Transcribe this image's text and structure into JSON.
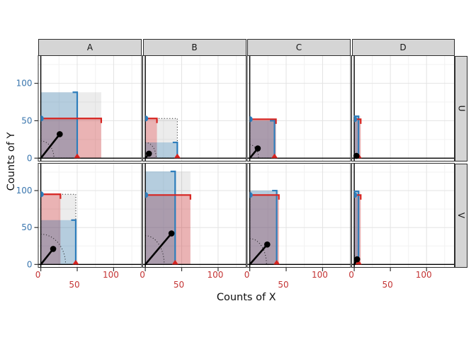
{
  "chart_data": {
    "type": "faceted_rect_scaling",
    "title": "",
    "xlabel": "Counts of X",
    "ylabel": "Counts of Y",
    "facet_cols": [
      "A",
      "B",
      "C",
      "D"
    ],
    "facet_rows": [
      "U",
      "V"
    ],
    "x_ticks": [
      0,
      50,
      100
    ],
    "y_ticks": [
      0,
      50,
      100
    ],
    "x_tick_rows": [
      [
        0,
        100
      ],
      [
        50
      ]
    ],
    "x_range": [
      -3.5,
      138.5
    ],
    "y_range": [
      -4,
      137
    ],
    "grid_minor": [
      25,
      75,
      125
    ],
    "grid_major": [
      0,
      50,
      100
    ],
    "legend_position": "none",
    "panels": [
      {
        "col": "A",
        "row": "U",
        "orig_w": 50,
        "orig_h": 53,
        "red_w": 83,
        "blue_h": 88,
        "point": [
          26,
          32
        ],
        "arc": [
          18,
          23
        ]
      },
      {
        "col": "B",
        "row": "U",
        "orig_w": 44,
        "orig_h": 53,
        "red_w": 16,
        "blue_h": 21,
        "point": [
          5,
          6
        ],
        "arc": [
          15,
          21
        ]
      },
      {
        "col": "C",
        "row": "U",
        "orig_w": 34,
        "orig_h": 52,
        "red_w": 36,
        "blue_h": 50,
        "point": [
          11,
          13
        ],
        "arc": [
          12,
          18
        ]
      },
      {
        "col": "D",
        "row": "U",
        "orig_w": 6,
        "orig_h": 52,
        "red_w": 9,
        "blue_h": 56,
        "point": [
          3,
          3
        ],
        "arc": [
          2,
          9
        ]
      },
      {
        "col": "A",
        "row": "V",
        "orig_w": 48,
        "orig_h": 95,
        "red_w": 27,
        "blue_h": 60,
        "point": [
          17,
          21
        ],
        "arc": [
          34,
          41
        ]
      },
      {
        "col": "B",
        "row": "V",
        "orig_w": 41,
        "orig_h": 94,
        "red_w": 62,
        "blue_h": 126,
        "point": [
          36,
          42
        ],
        "arc": [
          26,
          39
        ]
      },
      {
        "col": "C",
        "row": "V",
        "orig_w": 37,
        "orig_h": 94,
        "red_w": 40,
        "blue_h": 100,
        "point": [
          24,
          27
        ],
        "arc": [
          23,
          35
        ]
      },
      {
        "col": "D",
        "row": "V",
        "orig_w": 6,
        "orig_h": 94,
        "red_w": 9,
        "blue_h": 99,
        "point": [
          4,
          7
        ],
        "arc": [
          3,
          12
        ]
      }
    ],
    "colors": {
      "red_line": "#d62420",
      "blue_line": "#2e7ebc",
      "red_fill": "rgba(228,26,28,0.27)",
      "blue_fill": "rgba(49,130,189,0.29)",
      "gray_fill": "rgba(80,80,80,0.11)",
      "point_color": "#000000",
      "zero_line": "#000000",
      "grid_major": "#e3e3e3",
      "grid_minor": "#f2f2f2",
      "panel_border": "#2e2e2e",
      "strip_bg": "#d5d5d5",
      "strip_text": "#141414",
      "x_tick_text": "#c43434",
      "y_tick_text": "#3a76ae",
      "tick_mark": "#333333"
    }
  }
}
